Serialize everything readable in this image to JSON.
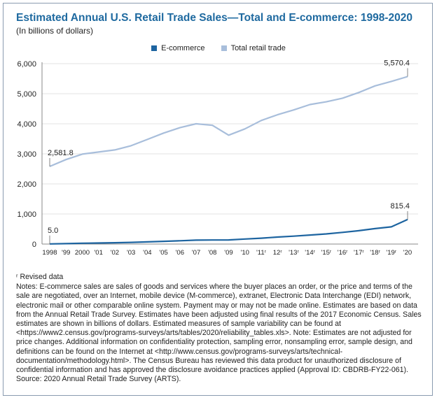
{
  "chart_data": {
    "type": "line",
    "title": "Estimated Annual U.S. Retail Trade Sales—Total and E-commerce: 1998-2020",
    "subtitle": "(In billions of dollars)",
    "categories": [
      "1998",
      "'99",
      "2000",
      "'01",
      "'02",
      "'03",
      "'04",
      "'05",
      "'06",
      "'07",
      "'08",
      "'09",
      "'10",
      "'11ʳ",
      "12ʳ",
      "'13ʳ",
      "'14ʳ",
      "'15ʳ",
      "'16ʳ",
      "'17ʳ",
      "'18ʳ",
      "'19ʳ",
      "'20"
    ],
    "series": [
      {
        "name": "E-commerce",
        "color": "#1d64a0",
        "values": [
          5.0,
          15,
          28,
          34,
          44,
          56,
          71,
          90,
          110,
          130,
          135,
          137,
          167,
          196,
          233,
          263,
          300,
          338,
          389,
          445,
          513,
          571,
          815.4
        ]
      },
      {
        "name": "Total retail trade",
        "color": "#a8bedb",
        "values": [
          2581.8,
          2810,
          2990,
          3060,
          3130,
          3270,
          3480,
          3690,
          3870,
          4000,
          3950,
          3620,
          3830,
          4110,
          4300,
          4460,
          4640,
          4730,
          4850,
          5040,
          5260,
          5410,
          5570.4
        ]
      }
    ],
    "data_labels": [
      {
        "series": "Total retail trade",
        "index": 0,
        "text": "2,581.8"
      },
      {
        "series": "Total retail trade",
        "index": 22,
        "text": "5,570.4"
      },
      {
        "series": "E-commerce",
        "index": 0,
        "text": "5.0"
      },
      {
        "series": "E-commerce",
        "index": 22,
        "text": "815.4"
      }
    ],
    "ylim": [
      0,
      6000
    ],
    "yticks": [
      0,
      1000,
      2000,
      3000,
      4000,
      5000,
      6000
    ],
    "ytick_labels": [
      "0",
      "1,000",
      "2,000",
      "3,000",
      "4,000",
      "5,000",
      "6,000"
    ],
    "grid": true,
    "legend_position": "top-center",
    "xlabel": "",
    "ylabel": ""
  },
  "notes": {
    "revised": "ʳ Revised data",
    "body": "Notes: E-commerce sales are sales of goods and services where the buyer places an order, or the price and terms of the sale are negotiated, over an Internet, mobile device (M-commerce), extranet, Electronic Data Interchange (EDI) network, electronic mail or other comparable online system. Payment may or may not be made online. Estimates are based on data from the Annual Retail Trade Survey. Estimates have been adjusted using final results of the 2017 Economic Census. Sales estimates are shown in billions of dollars. Estimated measures of sample variability can be found at <https://www2.census.gov/programs-surveys/arts/tables/2020/reliability_tables.xls>. Note: Estimates are not adjusted for price changes. Additional information on confidentiality protection, sampling error, nonsampling error, sample design, and definitions can be found on the Internet at <http://www.census.gov/programs-surveys/arts/technical-documentation/methodology.html>. The Census Bureau has reviewed this data product for unauthorized disclosure of confidential information and has approved the disclosure avoidance practices applied (Approval ID: CBDRB-FY22-061).",
    "source": "Source: 2020 Annual Retail Trade Survey (ARTS)."
  }
}
